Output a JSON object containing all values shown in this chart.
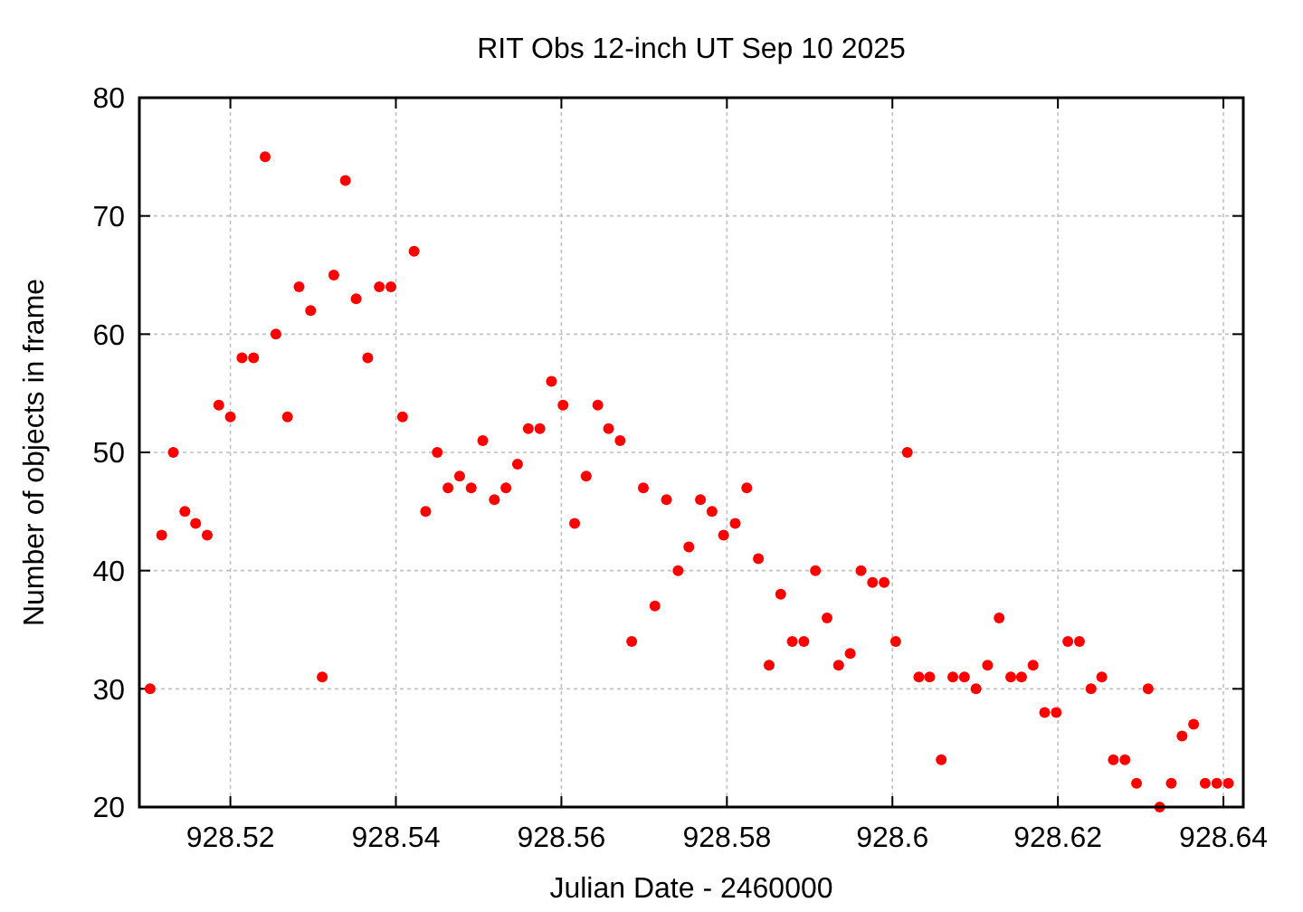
{
  "chart_data": {
    "type": "scatter",
    "title": "RIT Obs 12-inch UT Sep 10 2025",
    "xlabel": "Julian Date - 2460000",
    "ylabel": "Number of objects in frame",
    "xlim": [
      928.509,
      928.6424
    ],
    "ylim": [
      20,
      80
    ],
    "xticks": [
      928.52,
      928.54,
      928.56,
      928.58,
      928.6,
      928.62,
      928.64
    ],
    "yticks": [
      20,
      30,
      40,
      50,
      60,
      70,
      80
    ],
    "grid": true,
    "marker": "circle",
    "series": [
      {
        "color": "#ff0000",
        "x": [
          928.5103,
          928.5117,
          928.5131,
          928.5145,
          928.5158,
          928.5172,
          928.5186,
          928.52,
          928.5214,
          928.5228,
          928.5242,
          928.5255,
          928.5269,
          928.5283,
          928.5297,
          928.5311,
          928.5325,
          928.5339,
          928.5352,
          928.5366,
          928.538,
          928.5394,
          928.5408,
          928.5422,
          928.5436,
          928.545,
          928.5463,
          928.5477,
          928.5491,
          928.5505,
          928.5519,
          928.5533,
          928.5547,
          928.556,
          928.5574,
          928.5588,
          928.5602,
          928.5616,
          928.563,
          928.5644,
          928.5657,
          928.5671,
          928.5685,
          928.5699,
          928.5713,
          928.5727,
          928.5741,
          928.5754,
          928.5768,
          928.5782,
          928.5796,
          928.581,
          928.5824,
          928.5838,
          928.5851,
          928.5865,
          928.5879,
          928.5893,
          928.5907,
          928.5921,
          928.5935,
          928.5949,
          928.5962,
          928.5976,
          928.599,
          928.6004,
          928.6018,
          928.6032,
          928.6045,
          928.6059,
          928.6073,
          928.6087,
          928.6101,
          928.6115,
          928.6129,
          928.6143,
          928.6156,
          928.617,
          928.6184,
          928.6198,
          928.6212,
          928.6226,
          928.624,
          928.6253,
          928.6267,
          928.6281,
          928.6295,
          928.6309,
          928.6323,
          928.6337,
          928.635,
          928.6364,
          928.6378,
          928.6392,
          928.6406
        ],
        "values": [
          30,
          43,
          50,
          45,
          44,
          43,
          54,
          53,
          58,
          58,
          75,
          60,
          53,
          64,
          62,
          31,
          65,
          73,
          63,
          58,
          64,
          64,
          53,
          67,
          45,
          50,
          47,
          48,
          47,
          51,
          46,
          47,
          49,
          52,
          52,
          56,
          54,
          44,
          48,
          54,
          52,
          51,
          34,
          47,
          37,
          46,
          40,
          42,
          46,
          45,
          43,
          44,
          47,
          41,
          32,
          38,
          34,
          34,
          40,
          36,
          32,
          33,
          40,
          39,
          39,
          34,
          50,
          31,
          31,
          24,
          31,
          31,
          30,
          32,
          36,
          31,
          31,
          32,
          28,
          28,
          34,
          34,
          30,
          31,
          24,
          24,
          22,
          30,
          20,
          22,
          26,
          27,
          22,
          22,
          22
        ]
      }
    ]
  }
}
